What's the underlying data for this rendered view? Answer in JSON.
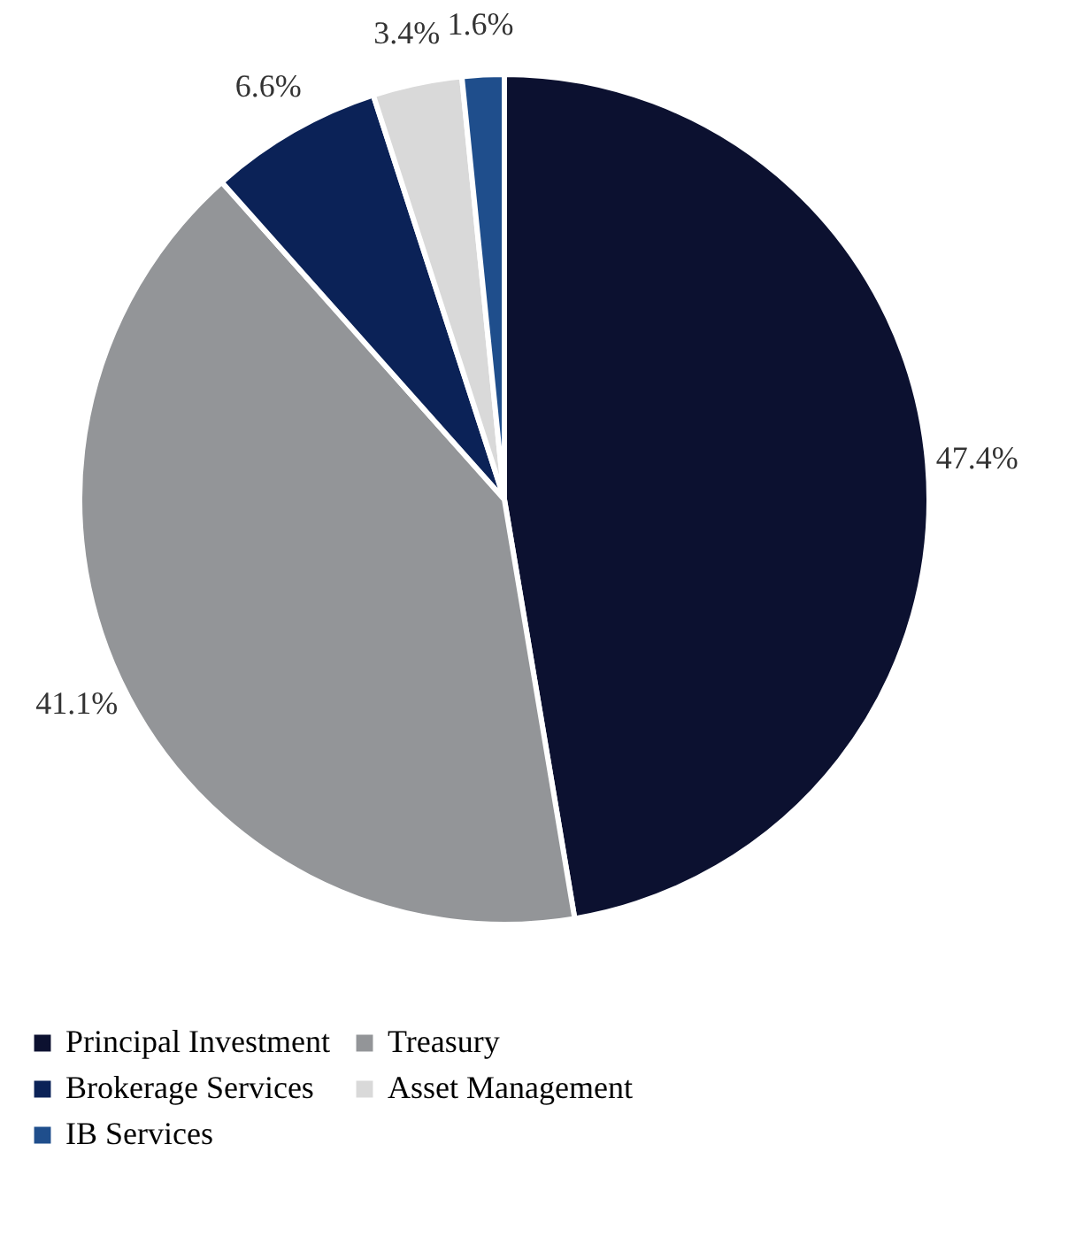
{
  "chart_data": {
    "type": "pie",
    "categories": [
      "Principal Investment",
      "Treasury",
      "Brokerage Services",
      "Asset Management",
      "IB Services"
    ],
    "values": [
      47.4,
      41.1,
      6.6,
      3.4,
      1.6
    ],
    "colors": [
      "#0c1130",
      "#939598",
      "#0b2257",
      "#d9d9d9",
      "#1f4e8c"
    ],
    "value_labels": [
      "47.4%",
      "41.1%",
      "6.6%",
      "3.4%",
      "1.6%"
    ],
    "legend": "bottom"
  }
}
